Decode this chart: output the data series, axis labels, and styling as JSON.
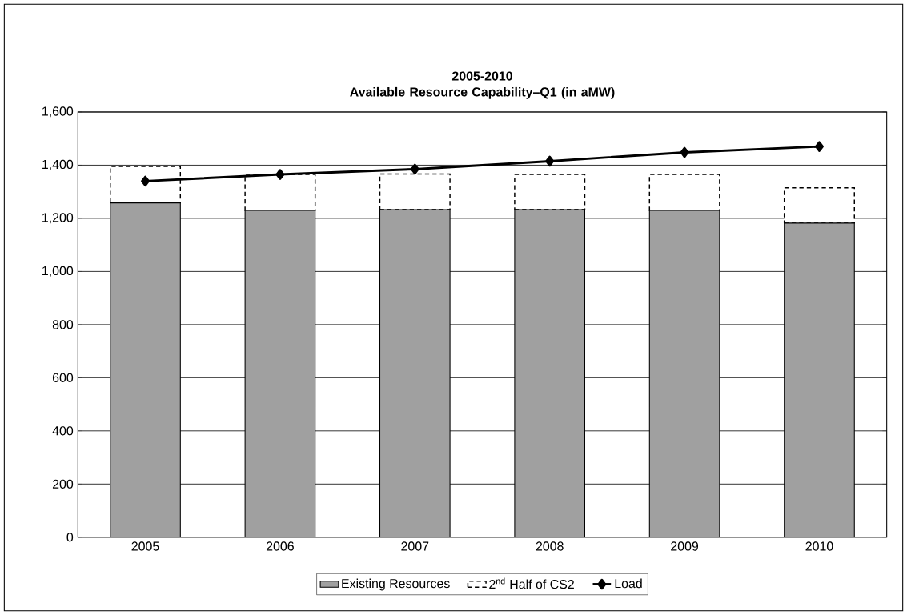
{
  "chart_data": {
    "type": "bar",
    "title": "2005-2010",
    "subtitle": "Available Resource Capability–Q1 (in aMW)",
    "categories": [
      "2005",
      "2006",
      "2007",
      "2008",
      "2009",
      "2010"
    ],
    "stacked": true,
    "series": [
      {
        "name": "Existing Resources",
        "color": "#a0a0a0",
        "values": [
          1258,
          1230,
          1233,
          1233,
          1230,
          1182
        ]
      },
      {
        "name": "2$^{nd}$ Half of CS2",
        "color": "#000000",
        "line_style": "dashed",
        "values": [
          137,
          135,
          134,
          132,
          135,
          133
        ]
      },
      {
        "name": "Load",
        "type": "line",
        "color": "#000000",
        "marker": "diamond",
        "values": [
          1340,
          1365,
          1385,
          1415,
          1448,
          1470
        ]
      }
    ],
    "ylim": [
      0,
      1600
    ],
    "yticks": [
      0,
      200,
      400,
      600,
      800,
      {
        "value": 1000,
        "label": "1,000"
      },
      {
        "value": 1200,
        "label": "1,200"
      },
      {
        "value": 1400,
        "label": "1,400"
      },
      {
        "value": 1600,
        "label": "1,600"
      }
    ],
    "grid": "y",
    "legend": "bottom"
  }
}
